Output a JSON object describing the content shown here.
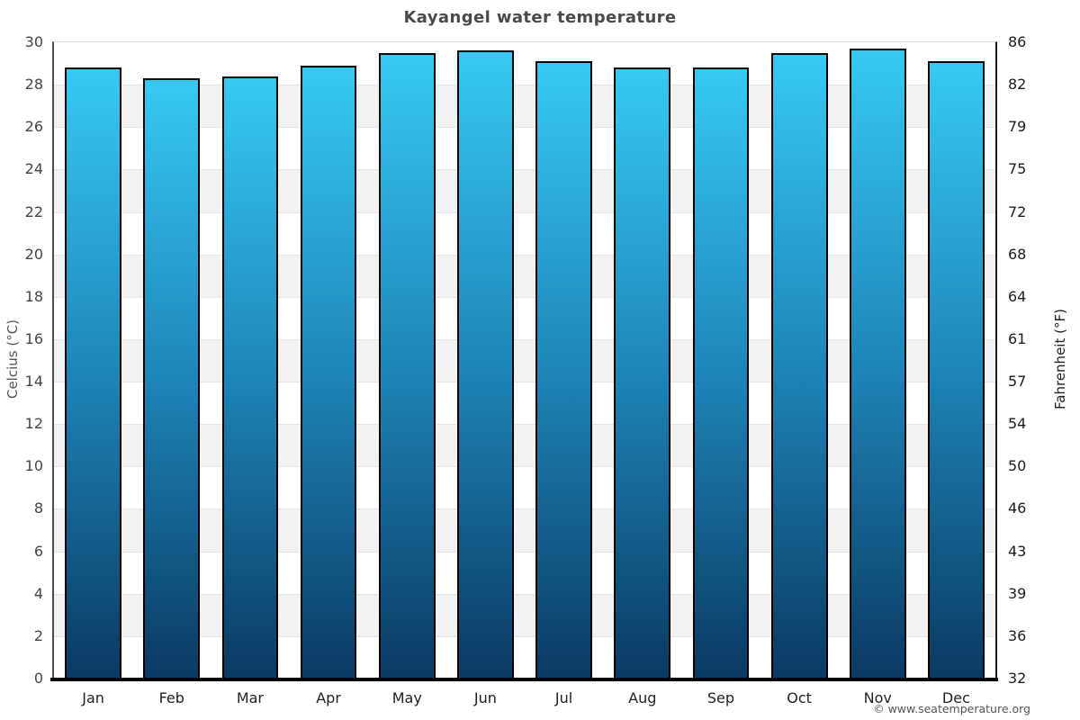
{
  "title": "Kayangel water temperature",
  "footer": "© www.seatemperature.org",
  "chart_data": {
    "type": "bar",
    "title": "Kayangel water temperature",
    "categories": [
      "Jan",
      "Feb",
      "Mar",
      "Apr",
      "May",
      "Jun",
      "Jul",
      "Aug",
      "Sep",
      "Oct",
      "Nov",
      "Dec"
    ],
    "values": [
      28.8,
      28.3,
      28.4,
      28.9,
      29.5,
      29.6,
      29.1,
      28.8,
      28.8,
      29.5,
      29.7,
      29.1
    ],
    "values_unit": "°C",
    "ylabel_left": "Celcius (°C)",
    "ylabel_right": "Fahrenheit (°F)",
    "xlabel": "",
    "ylim": [
      0,
      30
    ],
    "ytick_step": 2,
    "yticks_left": [
      30,
      28,
      26,
      24,
      22,
      20,
      18,
      16,
      14,
      12,
      10,
      8,
      6,
      4,
      2,
      0
    ],
    "yticks_right": [
      86,
      82,
      79,
      75,
      72,
      68,
      64,
      61,
      57,
      54,
      50,
      46,
      43,
      39,
      36,
      32
    ],
    "legend": false,
    "grid": "alternating-horizontal-bands-every-2-degrees",
    "colors": {
      "bar_gradient_top": "#37c9f4",
      "bar_gradient_mid": "#1e85b8",
      "bar_gradient_bottom": "#0a3a63",
      "bar_border": "#000000",
      "band_fill": "#f2f2f2",
      "gridline": "#e4e4e4",
      "baseline": "#000000",
      "title_color": "#4a4a4a"
    }
  }
}
